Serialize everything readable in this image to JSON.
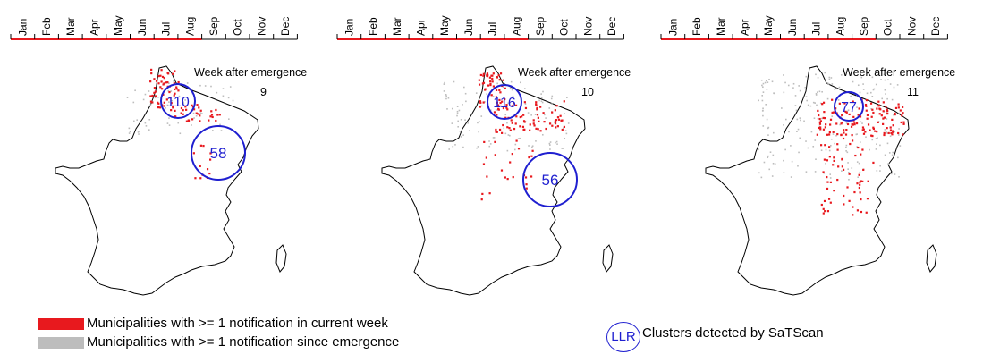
{
  "months": [
    "Jan",
    "Feb",
    "Mar",
    "Apr",
    "May",
    "Jun",
    "Jul",
    "Aug",
    "Sep",
    "Oct",
    "Nov",
    "Dec"
  ],
  "colors": {
    "current_week": "#e8191e",
    "since_emergence": "#bdbdbd",
    "cluster": "#1f1fd0",
    "border": "#000000"
  },
  "panels": [
    {
      "week_label": "Week after emergence",
      "week": "9",
      "highlight_months": 8,
      "clusters": [
        {
          "llr": "110",
          "r": 19
        },
        {
          "llr": "58",
          "r": 30
        }
      ]
    },
    {
      "week_label": "Week after emergence",
      "week": "10",
      "highlight_months": 8,
      "clusters": [
        {
          "llr": "116",
          "r": 19
        },
        {
          "llr": "56",
          "r": 30
        }
      ]
    },
    {
      "week_label": "Week after emergence",
      "week": "11",
      "highlight_months": 9,
      "clusters": [
        {
          "llr": "77",
          "r": 16
        }
      ]
    }
  ],
  "legend": {
    "current_week": "Municipalities with >= 1 notification in current week",
    "since_emergence": "Municipalities with >= 1 notification since emergence",
    "llr_symbol": "LLR",
    "clusters": "Clusters detected by SaTScan"
  }
}
